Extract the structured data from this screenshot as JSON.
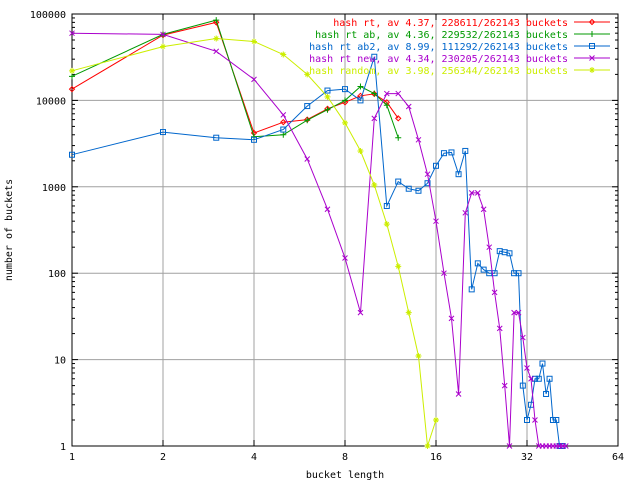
{
  "chart_data": {
    "type": "line",
    "title": "",
    "xlabel": "bucket length",
    "ylabel": "number of buckets",
    "xscale": "log2",
    "yscale": "log10",
    "xlim": [
      1,
      64
    ],
    "ylim": [
      1,
      100000
    ],
    "grid": true,
    "legend_position": "top-right",
    "x_ticks": [
      "1",
      "2",
      "4",
      "8",
      "16",
      "32",
      "64"
    ],
    "y_ticks": [
      "1",
      "10",
      "100",
      "1000",
      "10000",
      "100000"
    ],
    "series": [
      {
        "name": "hash rt, av 4.37, 228611/262143 buckets",
        "color": "#ff0000",
        "marker": "diamond",
        "x": [
          1,
          2,
          3,
          4,
          5,
          6,
          7,
          8,
          9,
          10,
          11,
          12
        ],
        "y": [
          13500,
          57000,
          80000,
          4200,
          5600,
          6000,
          8000,
          9500,
          11300,
          11900,
          9500,
          6200
        ]
      },
      {
        "name": "hash rt ab, av 4.36, 229532/262143 buckets",
        "color": "#009900",
        "marker": "plus",
        "x": [
          1,
          2,
          3,
          4,
          5,
          6,
          7,
          8,
          9,
          10,
          11,
          12
        ],
        "y": [
          19000,
          58000,
          85000,
          3800,
          4000,
          5900,
          7800,
          10000,
          14500,
          12000,
          8800,
          3700
        ]
      },
      {
        "name": "hash rt ab2, av 8.99, 111292/262143 buckets",
        "color": "#0066cc",
        "marker": "square",
        "x": [
          1,
          2,
          3,
          4,
          5,
          6,
          7,
          8,
          9,
          10,
          11,
          12,
          13,
          14,
          15,
          16,
          17,
          18,
          19,
          20,
          21,
          22,
          23,
          24,
          25,
          26,
          27,
          28,
          29,
          30,
          31,
          32,
          33,
          34,
          35,
          36,
          37,
          38,
          39,
          40,
          41,
          42
        ],
        "y": [
          2350,
          4300,
          3700,
          3500,
          4600,
          8600,
          13000,
          13500,
          10000,
          32000,
          600,
          1150,
          950,
          900,
          1100,
          1750,
          2450,
          2500,
          1400,
          2600,
          65,
          130,
          110,
          100,
          100,
          180,
          175,
          170,
          100,
          100,
          5,
          2,
          3,
          6,
          6,
          9,
          4,
          6,
          2,
          2,
          1,
          1
        ]
      },
      {
        "name": "hash rt new, av 4.34, 230205/262143 buckets",
        "color": "#aa00cc",
        "marker": "cross",
        "x": [
          1,
          2,
          3,
          4,
          5,
          6,
          7,
          8,
          9,
          10,
          11,
          12,
          13,
          14,
          15,
          16,
          17,
          18,
          19,
          20,
          21,
          22,
          23,
          24,
          25,
          26,
          27,
          28,
          29,
          30,
          31,
          32,
          33,
          34,
          35,
          36,
          37,
          38,
          39,
          40,
          41,
          42,
          43
        ],
        "y": [
          60000,
          58000,
          37000,
          17500,
          6800,
          2100,
          550,
          150,
          35,
          6200,
          12000,
          12000,
          8500,
          3500,
          1400,
          400,
          100,
          30,
          4,
          500,
          850,
          850,
          550,
          200,
          60,
          23,
          5,
          1,
          35,
          35,
          18,
          8,
          6,
          2,
          1,
          1,
          1,
          1,
          1,
          1,
          1,
          1,
          1
        ]
      },
      {
        "name": "hash random, av 3.98, 256344/262143 buckets",
        "color": "#ccee00",
        "marker": "star",
        "x": [
          1,
          2,
          3,
          4,
          5,
          6,
          7,
          8,
          9,
          10,
          11,
          12,
          13,
          14,
          15,
          16
        ],
        "y": [
          22000,
          42000,
          52000,
          48000,
          34000,
          20000,
          11000,
          5500,
          2600,
          1050,
          370,
          120,
          35,
          11,
          1,
          2
        ]
      }
    ]
  }
}
